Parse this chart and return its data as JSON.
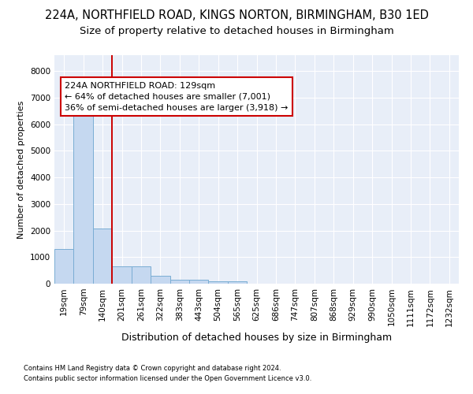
{
  "title1": "224A, NORTHFIELD ROAD, KINGS NORTON, BIRMINGHAM, B30 1ED",
  "title2": "Size of property relative to detached houses in Birmingham",
  "xlabel": "Distribution of detached houses by size in Birmingham",
  "ylabel": "Number of detached properties",
  "footnote1": "Contains HM Land Registry data © Crown copyright and database right 2024.",
  "footnote2": "Contains public sector information licensed under the Open Government Licence v3.0.",
  "annotation_line1": "224A NORTHFIELD ROAD: 129sqm",
  "annotation_line2": "← 64% of detached houses are smaller (7,001)",
  "annotation_line3": "36% of semi-detached houses are larger (3,918) →",
  "bar_color": "#c5d8f0",
  "bar_edge_color": "#7aadd4",
  "line_color": "#cc0000",
  "bg_color": "#e8eef8",
  "grid_color": "#ffffff",
  "categories": [
    "19sqm",
    "79sqm",
    "140sqm",
    "201sqm",
    "261sqm",
    "322sqm",
    "383sqm",
    "443sqm",
    "504sqm",
    "565sqm",
    "625sqm",
    "686sqm",
    "747sqm",
    "807sqm",
    "868sqm",
    "929sqm",
    "990sqm",
    "1050sqm",
    "1111sqm",
    "1172sqm",
    "1232sqm"
  ],
  "values": [
    1310,
    6600,
    2080,
    650,
    650,
    300,
    145,
    145,
    85,
    85,
    0,
    0,
    0,
    0,
    0,
    0,
    0,
    0,
    0,
    0,
    0
  ],
  "vline_pos": 2.5,
  "ylim": [
    0,
    8600
  ],
  "yticks": [
    0,
    1000,
    2000,
    3000,
    4000,
    5000,
    6000,
    7000,
    8000
  ],
  "title1_fontsize": 10.5,
  "title2_fontsize": 9.5,
  "xlabel_fontsize": 9,
  "ylabel_fontsize": 8,
  "tick_fontsize": 7.5,
  "annot_fontsize": 8,
  "footnote_fontsize": 6
}
